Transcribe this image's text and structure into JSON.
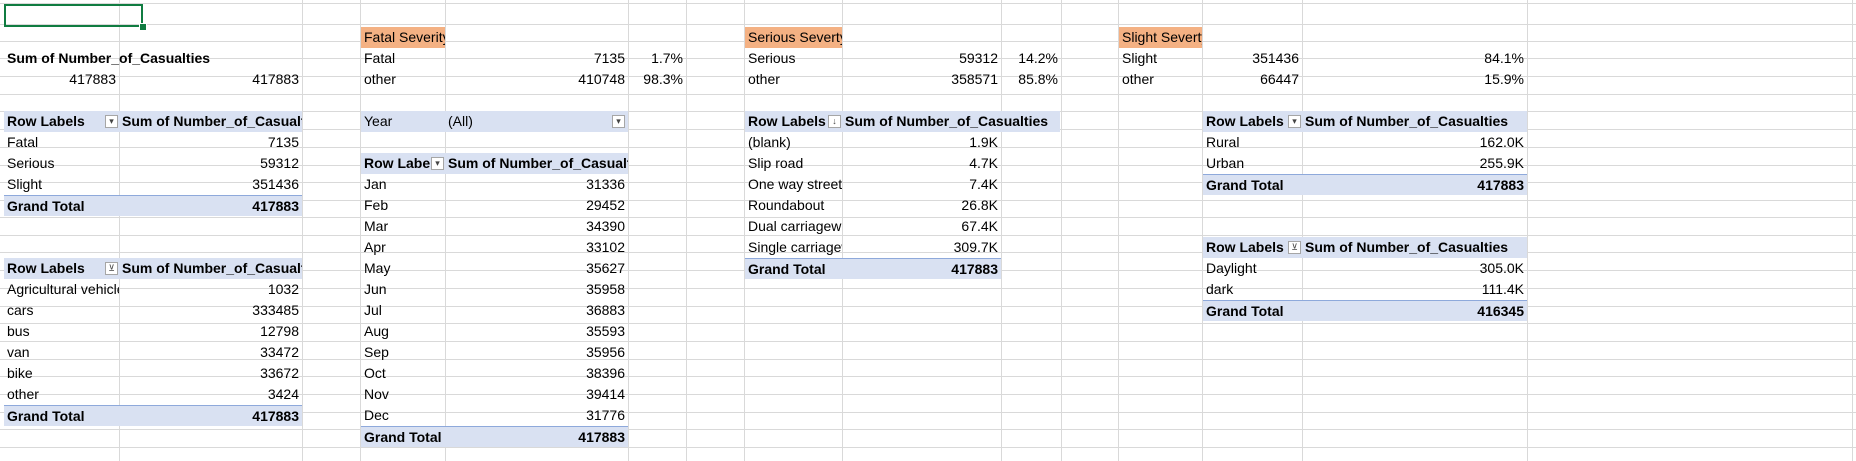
{
  "summary": {
    "header": "Sum of Number_of_Casualties",
    "value_a": "417883",
    "value_b": "417883"
  },
  "severity_cards": [
    {
      "title": "Fatal Severity",
      "row1_label": "Fatal",
      "row1_value": "7135",
      "row1_pct": "1.7%",
      "row2_label": "other",
      "row2_value": "410748",
      "row2_pct": "98.3%"
    },
    {
      "title": "Serious Severty",
      "row1_label": "Serious",
      "row1_value": "59312",
      "row1_pct": "14.2%",
      "row2_label": "other",
      "row2_value": "358571",
      "row2_pct": "85.8%"
    },
    {
      "title": "Slight Severty",
      "row1_label": "Slight",
      "row1_value": "351436",
      "row1_pct": "84.1%",
      "row2_label": "other",
      "row2_value": "66447",
      "row2_pct": "15.9%"
    }
  ],
  "pivot_severity": {
    "col1": "Row Labels",
    "col2": "Sum of Number_of_Casualties",
    "rows": [
      {
        "label": "Fatal",
        "value": "7135"
      },
      {
        "label": "Serious",
        "value": "59312"
      },
      {
        "label": "Slight",
        "value": "351436"
      }
    ],
    "total_label": "Grand Total",
    "total_value": "417883"
  },
  "pivot_vehicle": {
    "col1": "Row Labels",
    "col2": "Sum of Number_of_Casualties",
    "rows": [
      {
        "label": "Agricultural vehicle",
        "value": "1032"
      },
      {
        "label": "cars",
        "value": "333485"
      },
      {
        "label": "bus",
        "value": "12798"
      },
      {
        "label": "van",
        "value": "33472"
      },
      {
        "label": "bike",
        "value": "33672"
      },
      {
        "label": "other",
        "value": "3424"
      }
    ],
    "total_label": "Grand Total",
    "total_value": "417883"
  },
  "pivot_month": {
    "filter_label": "Year",
    "filter_value": "(All)",
    "col1": "Row Labels",
    "col2": "Sum of Number_of_Casualties",
    "rows": [
      {
        "label": "Jan",
        "value": "31336"
      },
      {
        "label": "Feb",
        "value": "29452"
      },
      {
        "label": "Mar",
        "value": "34390"
      },
      {
        "label": "Apr",
        "value": "33102"
      },
      {
        "label": "May",
        "value": "35627"
      },
      {
        "label": "Jun",
        "value": "35958"
      },
      {
        "label": "Jul",
        "value": "36883"
      },
      {
        "label": "Aug",
        "value": "35593"
      },
      {
        "label": "Sep",
        "value": "35956"
      },
      {
        "label": "Oct",
        "value": "38396"
      },
      {
        "label": "Nov",
        "value": "39414"
      },
      {
        "label": "Dec",
        "value": "31776"
      }
    ],
    "total_label": "Grand Total",
    "total_value": "417883"
  },
  "pivot_road": {
    "col1": "Row Labels",
    "col2": "Sum of Number_of_Casualties",
    "rows": [
      {
        "label": "(blank)",
        "value": "1.9K"
      },
      {
        "label": "Slip road",
        "value": "4.7K"
      },
      {
        "label": "One way street",
        "value": "7.4K"
      },
      {
        "label": "Roundabout",
        "value": "26.8K"
      },
      {
        "label": "Dual carriageway",
        "value": "67.4K"
      },
      {
        "label": "Single carriageway",
        "value": "309.7K"
      }
    ],
    "total_label": "Grand Total",
    "total_value": "417883"
  },
  "pivot_area": {
    "col1": "Row Labels",
    "col2": "Sum of Number_of_Casualties",
    "rows": [
      {
        "label": "Rural",
        "value": "162.0K"
      },
      {
        "label": "Urban",
        "value": "255.9K"
      }
    ],
    "total_label": "Grand Total",
    "total_value": "417883"
  },
  "pivot_light": {
    "col1": "Row Labels",
    "col2": "Sum of Number_of_Casualties",
    "rows": [
      {
        "label": "Daylight",
        "value": "305.0K"
      },
      {
        "label": "dark",
        "value": "111.4K"
      }
    ],
    "total_label": "Grand Total",
    "total_value": "416345"
  },
  "colors": {
    "header_fill": "#d9e1f2",
    "card_title_fill": "#f4b183",
    "selection": "#107c41",
    "gridline": "#d9d9d9"
  }
}
